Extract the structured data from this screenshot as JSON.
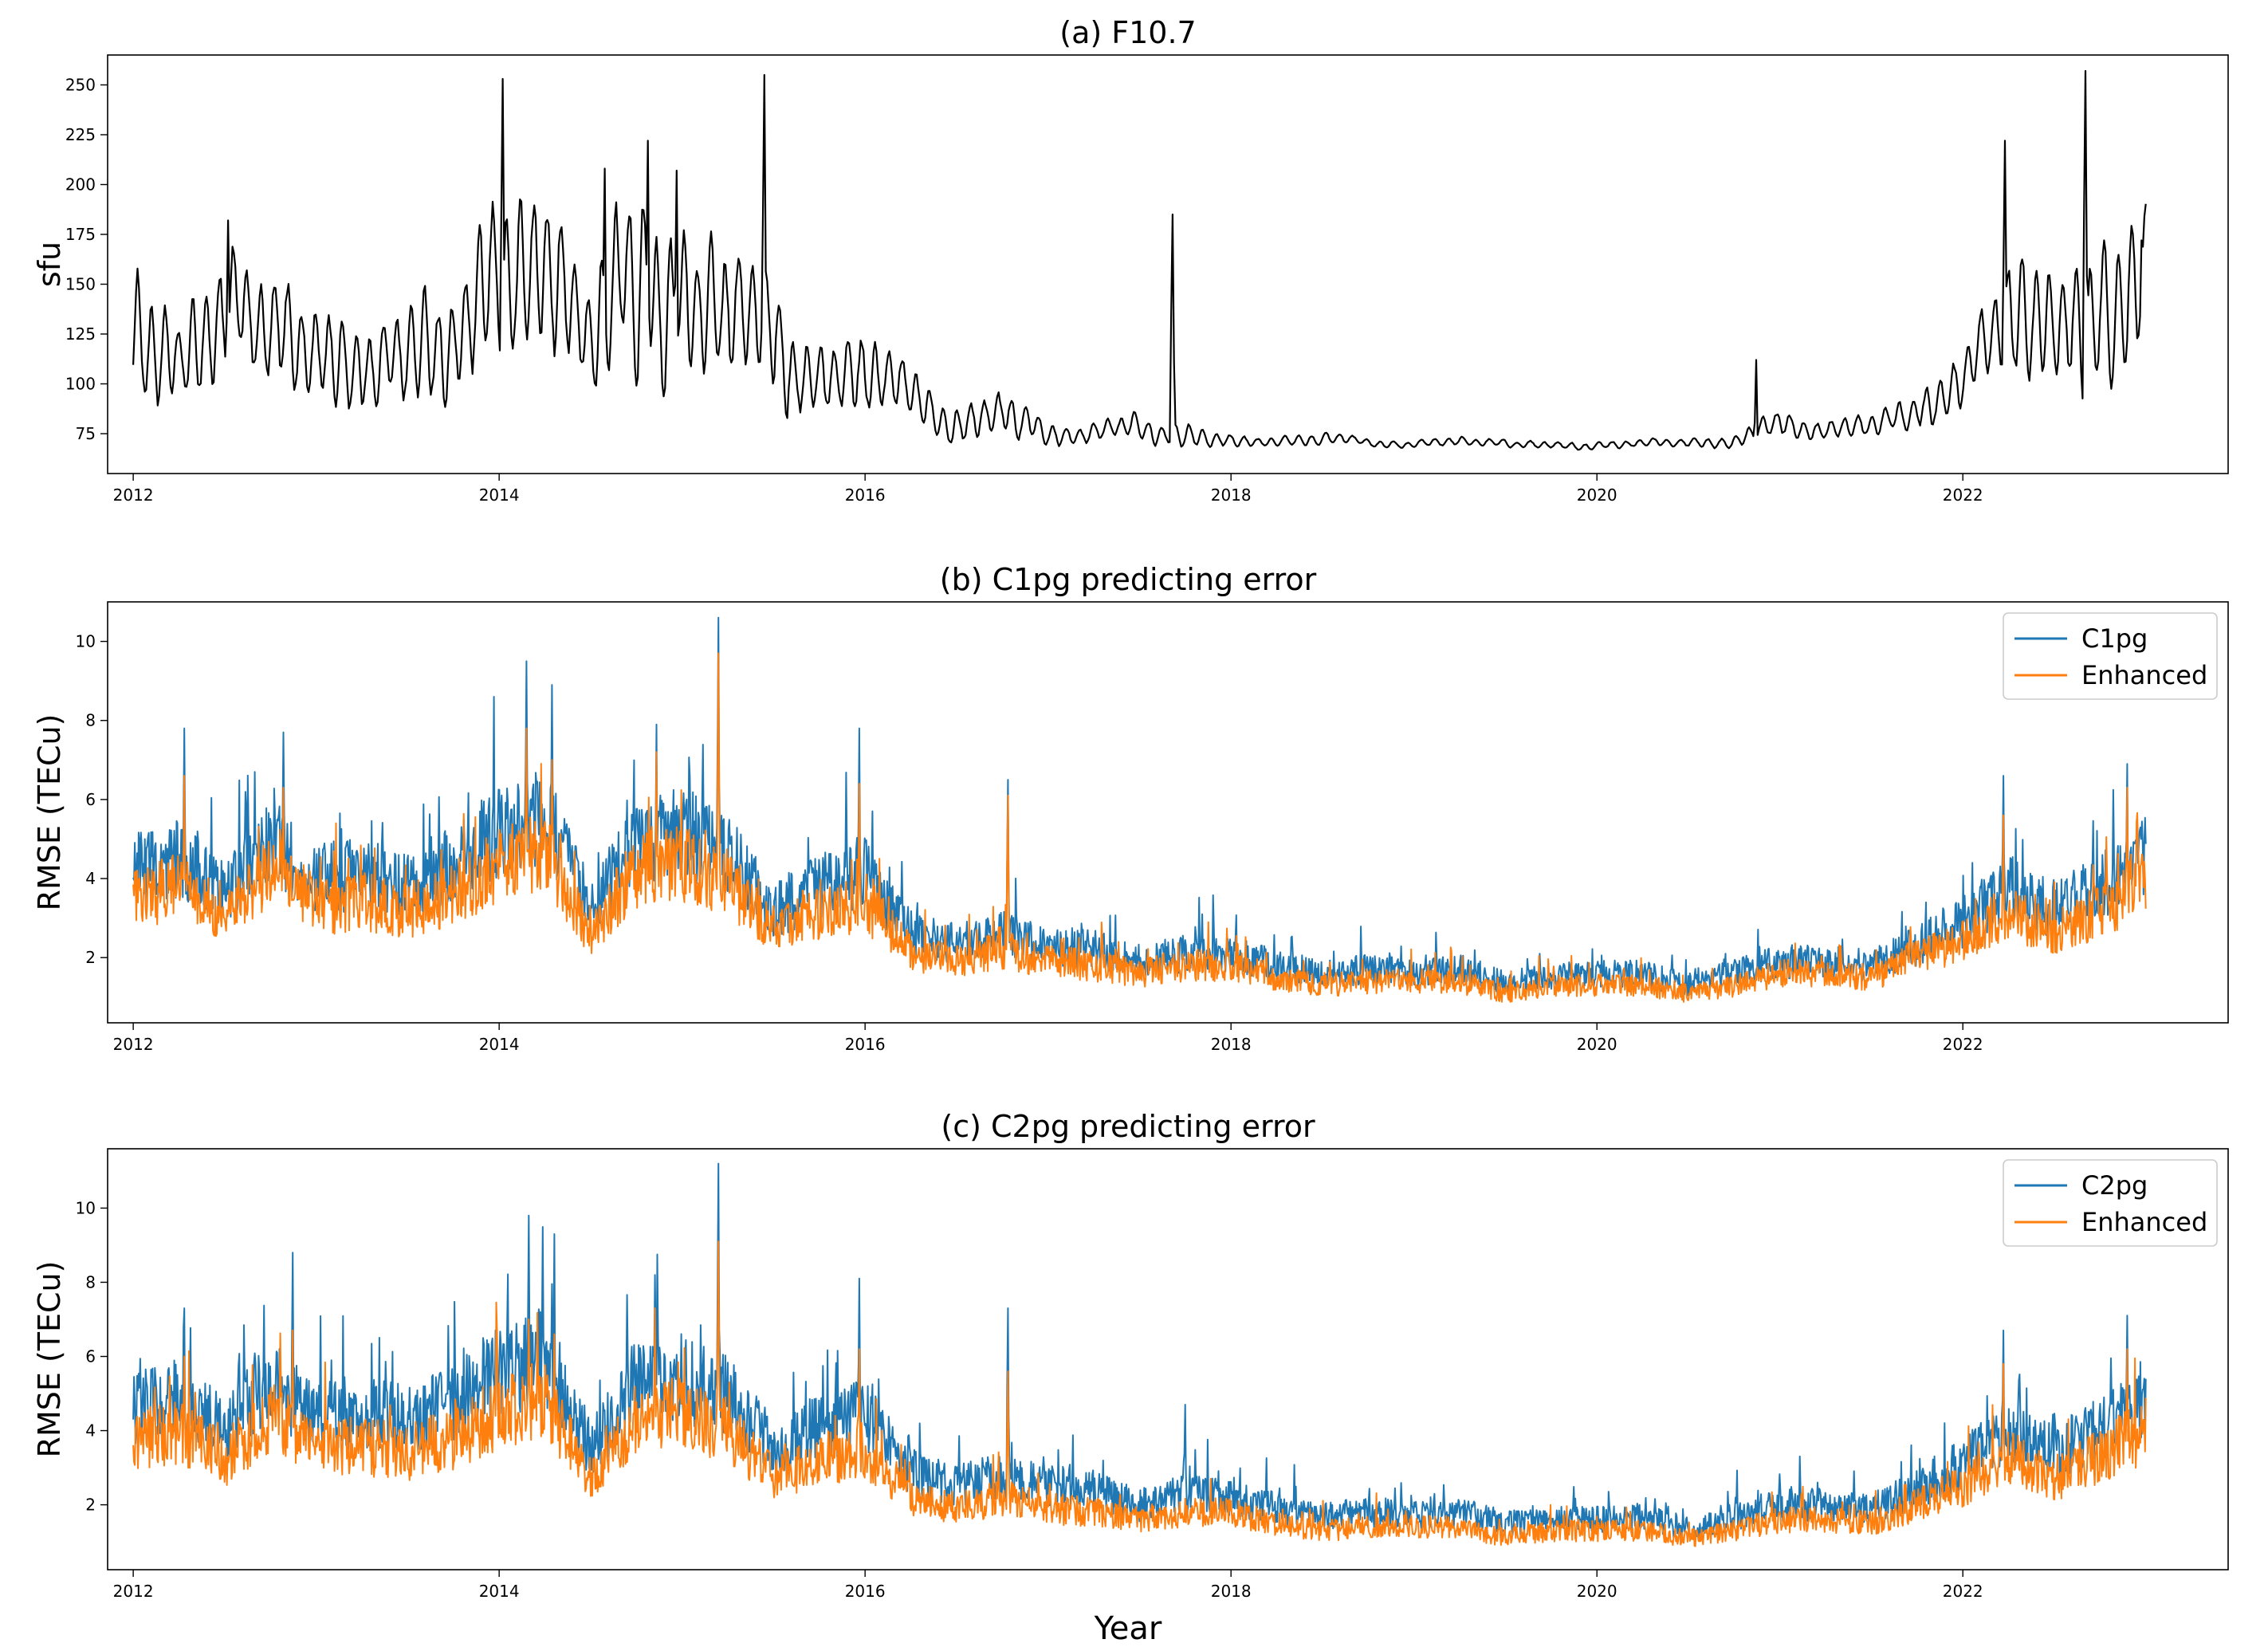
{
  "chart_data": [
    {
      "type": "line",
      "title": "(a) F10.7",
      "xlabel": "",
      "ylabel": "sfu",
      "xlim": [
        2011.86,
        2023.45
      ],
      "ylim": [
        55,
        265
      ],
      "x_ticks": [
        2012,
        2014,
        2016,
        2018,
        2020,
        2022
      ],
      "x_tick_labels": [
        "2012",
        "2014",
        "2016",
        "2018",
        "2020",
        "2022"
      ],
      "y_ticks": [
        75,
        100,
        125,
        150,
        175,
        200,
        225,
        250
      ],
      "y_tick_labels": [
        "75",
        "100",
        "125",
        "150",
        "175",
        "200",
        "225",
        "250"
      ],
      "legend": null,
      "series": [
        {
          "name": "F10.7",
          "color": "#000000",
          "x": [
            2012.0,
            2012.25,
            2012.5,
            2012.75,
            2013.0,
            2013.25,
            2013.5,
            2013.75,
            2014.0,
            2014.25,
            2014.5,
            2014.75,
            2015.0,
            2015.25,
            2015.5,
            2015.75,
            2016.0,
            2016.25,
            2016.5,
            2016.75,
            2017.0,
            2017.25,
            2017.5,
            2017.75,
            2018.0,
            2018.25,
            2018.5,
            2018.75,
            2019.0,
            2019.25,
            2019.5,
            2019.75,
            2020.0,
            2020.25,
            2020.5,
            2020.75,
            2021.0,
            2021.25,
            2021.5,
            2021.75,
            2022.0,
            2022.25,
            2022.5,
            2022.75,
            2023.0
          ],
          "values": [
            128,
            105,
            135,
            118,
            115,
            110,
            118,
            120,
            145,
            155,
            125,
            160,
            140,
            130,
            125,
            105,
            108,
            92,
            86,
            90,
            78,
            76,
            80,
            77,
            72,
            71,
            72,
            70,
            69,
            71,
            70,
            69,
            69,
            70,
            71,
            72,
            80,
            76,
            78,
            86,
            95,
            125,
            130,
            135,
            150
          ],
          "spikes": [
            [
              2012.52,
              182
            ],
            [
              2014.02,
              253
            ],
            [
              2014.58,
              208
            ],
            [
              2014.81,
              222
            ],
            [
              2014.97,
              207
            ],
            [
              2015.45,
              255
            ],
            [
              2017.68,
              185
            ],
            [
              2020.87,
              112
            ],
            [
              2022.23,
              222
            ],
            [
              2022.67,
              257
            ],
            [
              2022.98,
              172
            ]
          ]
        }
      ]
    },
    {
      "type": "line",
      "title": "(b) C1pg predicting error",
      "xlabel": "",
      "ylabel": "RMSE (TECu)",
      "xlim": [
        2011.86,
        2023.45
      ],
      "ylim": [
        0.35,
        11.0
      ],
      "x_ticks": [
        2012,
        2014,
        2016,
        2018,
        2020,
        2022
      ],
      "x_tick_labels": [
        "2012",
        "2014",
        "2016",
        "2018",
        "2020",
        "2022"
      ],
      "y_ticks": [
        2,
        4,
        6,
        8,
        10
      ],
      "y_tick_labels": [
        "2",
        "4",
        "6",
        "8",
        "10"
      ],
      "legend": "top-right",
      "series": [
        {
          "name": "C1pg",
          "color": "#1f77b4",
          "x": [
            2012.0,
            2012.25,
            2012.5,
            2012.75,
            2013.0,
            2013.25,
            2013.5,
            2013.75,
            2014.0,
            2014.25,
            2014.5,
            2014.75,
            2015.0,
            2015.25,
            2015.5,
            2015.75,
            2016.0,
            2016.25,
            2016.5,
            2016.75,
            2017.0,
            2017.25,
            2017.5,
            2017.75,
            2018.0,
            2018.25,
            2018.5,
            2018.75,
            2019.0,
            2019.25,
            2019.5,
            2019.75,
            2020.0,
            2020.25,
            2020.5,
            2020.75,
            2021.0,
            2021.25,
            2021.5,
            2021.75,
            2022.0,
            2022.25,
            2022.5,
            2022.75,
            2023.0
          ],
          "values": [
            4.2,
            4.5,
            3.6,
            5.0,
            4.0,
            4.1,
            3.9,
            4.4,
            5.2,
            5.6,
            3.2,
            5.0,
            5.2,
            4.6,
            3.2,
            3.8,
            4.2,
            2.6,
            2.3,
            2.6,
            2.3,
            2.2,
            1.9,
            2.1,
            2.1,
            1.8,
            1.6,
            1.7,
            1.6,
            1.7,
            1.4,
            1.5,
            1.6,
            1.6,
            1.3,
            1.6,
            1.9,
            1.9,
            1.8,
            2.3,
            2.9,
            3.8,
            3.2,
            3.8,
            4.6
          ],
          "spikes": [
            [
              2012.28,
              7.8
            ],
            [
              2012.82,
              7.7
            ],
            [
              2014.15,
              9.5
            ],
            [
              2014.29,
              8.9
            ],
            [
              2014.86,
              7.9
            ],
            [
              2015.2,
              10.6
            ],
            [
              2015.97,
              7.8
            ],
            [
              2016.78,
              6.5
            ],
            [
              2022.22,
              6.6
            ],
            [
              2022.9,
              6.9
            ]
          ]
        },
        {
          "name": "Enhanced",
          "color": "#ff7f0e",
          "x": [
            2012.0,
            2012.25,
            2012.5,
            2012.75,
            2013.0,
            2013.25,
            2013.5,
            2013.75,
            2014.0,
            2014.25,
            2014.5,
            2014.75,
            2015.0,
            2015.25,
            2015.5,
            2015.75,
            2016.0,
            2016.25,
            2016.5,
            2016.75,
            2017.0,
            2017.25,
            2017.5,
            2017.75,
            2018.0,
            2018.25,
            2018.5,
            2018.75,
            2019.0,
            2019.25,
            2019.5,
            2019.75,
            2020.0,
            2020.25,
            2020.5,
            2020.75,
            2021.0,
            2021.25,
            2021.5,
            2021.75,
            2022.0,
            2022.25,
            2022.5,
            2022.75,
            2023.0
          ],
          "values": [
            3.5,
            3.8,
            3.0,
            4.2,
            3.3,
            3.4,
            3.2,
            3.6,
            4.3,
            4.7,
            2.6,
            4.2,
            4.4,
            3.9,
            2.6,
            3.1,
            3.4,
            2.1,
            1.9,
            2.2,
            1.9,
            1.8,
            1.6,
            1.8,
            1.8,
            1.5,
            1.3,
            1.4,
            1.4,
            1.4,
            1.1,
            1.3,
            1.3,
            1.3,
            1.1,
            1.3,
            1.6,
            1.6,
            1.5,
            2.0,
            2.4,
            3.2,
            2.6,
            3.2,
            3.9
          ],
          "spikes": [
            [
              2012.28,
              6.6
            ],
            [
              2012.82,
              6.3
            ],
            [
              2014.15,
              7.8
            ],
            [
              2014.29,
              7.0
            ],
            [
              2014.86,
              7.2
            ],
            [
              2015.2,
              9.7
            ],
            [
              2015.97,
              6.4
            ],
            [
              2016.78,
              6.1
            ],
            [
              2022.22,
              5.6
            ],
            [
              2022.9,
              6.3
            ]
          ]
        }
      ]
    },
    {
      "type": "line",
      "title": "(c) C2pg predicting error",
      "xlabel": "Year",
      "ylabel": "RMSE (TECu)",
      "xlim": [
        2011.86,
        2023.45
      ],
      "ylim": [
        0.25,
        11.6
      ],
      "x_ticks": [
        2012,
        2014,
        2016,
        2018,
        2020,
        2022
      ],
      "x_tick_labels": [
        "2012",
        "2014",
        "2016",
        "2018",
        "2020",
        "2022"
      ],
      "y_ticks": [
        2,
        4,
        6,
        8,
        10
      ],
      "y_tick_labels": [
        "2",
        "4",
        "6",
        "8",
        "10"
      ],
      "legend": "top-right",
      "series": [
        {
          "name": "C2pg",
          "color": "#1f77b4",
          "x": [
            2012.0,
            2012.25,
            2012.5,
            2012.75,
            2013.0,
            2013.25,
            2013.5,
            2013.75,
            2014.0,
            2014.25,
            2014.5,
            2014.75,
            2015.0,
            2015.25,
            2015.5,
            2015.75,
            2016.0,
            2016.25,
            2016.5,
            2016.75,
            2017.0,
            2017.25,
            2017.5,
            2017.75,
            2018.0,
            2018.25,
            2018.5,
            2018.75,
            2019.0,
            2019.25,
            2019.5,
            2019.75,
            2020.0,
            2020.25,
            2020.5,
            2020.75,
            2021.0,
            2021.25,
            2021.5,
            2021.75,
            2022.0,
            2022.25,
            2022.5,
            2022.75,
            2023.0
          ],
          "values": [
            4.6,
            4.9,
            4.0,
            5.3,
            4.4,
            4.5,
            4.3,
            4.8,
            5.6,
            6.0,
            3.5,
            5.3,
            5.4,
            4.9,
            3.5,
            4.1,
            4.4,
            2.9,
            2.5,
            2.8,
            2.5,
            2.4,
            2.0,
            2.3,
            2.2,
            1.9,
            1.7,
            1.8,
            1.7,
            1.8,
            1.5,
            1.6,
            1.6,
            1.7,
            1.3,
            1.7,
            2.0,
            2.0,
            1.9,
            2.4,
            3.1,
            4.0,
            3.4,
            4.0,
            4.9
          ],
          "spikes": [
            [
              2012.28,
              7.3
            ],
            [
              2012.87,
              8.8
            ],
            [
              2014.16,
              9.8
            ],
            [
              2014.3,
              9.3
            ],
            [
              2014.85,
              8.2
            ],
            [
              2015.2,
              11.2
            ],
            [
              2015.97,
              8.1
            ],
            [
              2016.78,
              7.3
            ],
            [
              2017.75,
              4.7
            ],
            [
              2022.22,
              6.7
            ],
            [
              2022.9,
              7.1
            ]
          ]
        },
        {
          "name": "Enhanced",
          "color": "#ff7f0e",
          "x": [
            2012.0,
            2012.25,
            2012.5,
            2012.75,
            2013.0,
            2013.25,
            2013.5,
            2013.75,
            2014.0,
            2014.25,
            2014.5,
            2014.75,
            2015.0,
            2015.25,
            2015.5,
            2015.75,
            2016.0,
            2016.25,
            2016.5,
            2016.75,
            2017.0,
            2017.25,
            2017.5,
            2017.75,
            2018.0,
            2018.25,
            2018.5,
            2018.75,
            2019.0,
            2019.25,
            2019.5,
            2019.75,
            2020.0,
            2020.25,
            2020.5,
            2020.75,
            2021.0,
            2021.25,
            2021.5,
            2021.75,
            2022.0,
            2022.25,
            2022.5,
            2022.75,
            2023.0
          ],
          "values": [
            3.7,
            4.0,
            3.2,
            4.4,
            3.5,
            3.6,
            3.4,
            3.8,
            4.5,
            4.9,
            2.7,
            4.3,
            4.5,
            4.0,
            2.7,
            3.2,
            3.5,
            2.2,
            1.9,
            2.2,
            1.9,
            1.8,
            1.6,
            1.8,
            1.8,
            1.5,
            1.3,
            1.4,
            1.4,
            1.4,
            1.1,
            1.3,
            1.3,
            1.3,
            1.1,
            1.3,
            1.6,
            1.6,
            1.5,
            2.0,
            2.5,
            3.3,
            2.7,
            3.3,
            4.0
          ],
          "spikes": [
            [
              2012.28,
              6.0
            ],
            [
              2012.87,
              6.7
            ],
            [
              2014.16,
              7.0
            ],
            [
              2014.3,
              6.6
            ],
            [
              2014.85,
              7.3
            ],
            [
              2015.2,
              9.1
            ],
            [
              2015.97,
              6.2
            ],
            [
              2016.78,
              5.6
            ],
            [
              2022.22,
              5.8
            ],
            [
              2022.9,
              6.2
            ]
          ]
        }
      ]
    }
  ]
}
